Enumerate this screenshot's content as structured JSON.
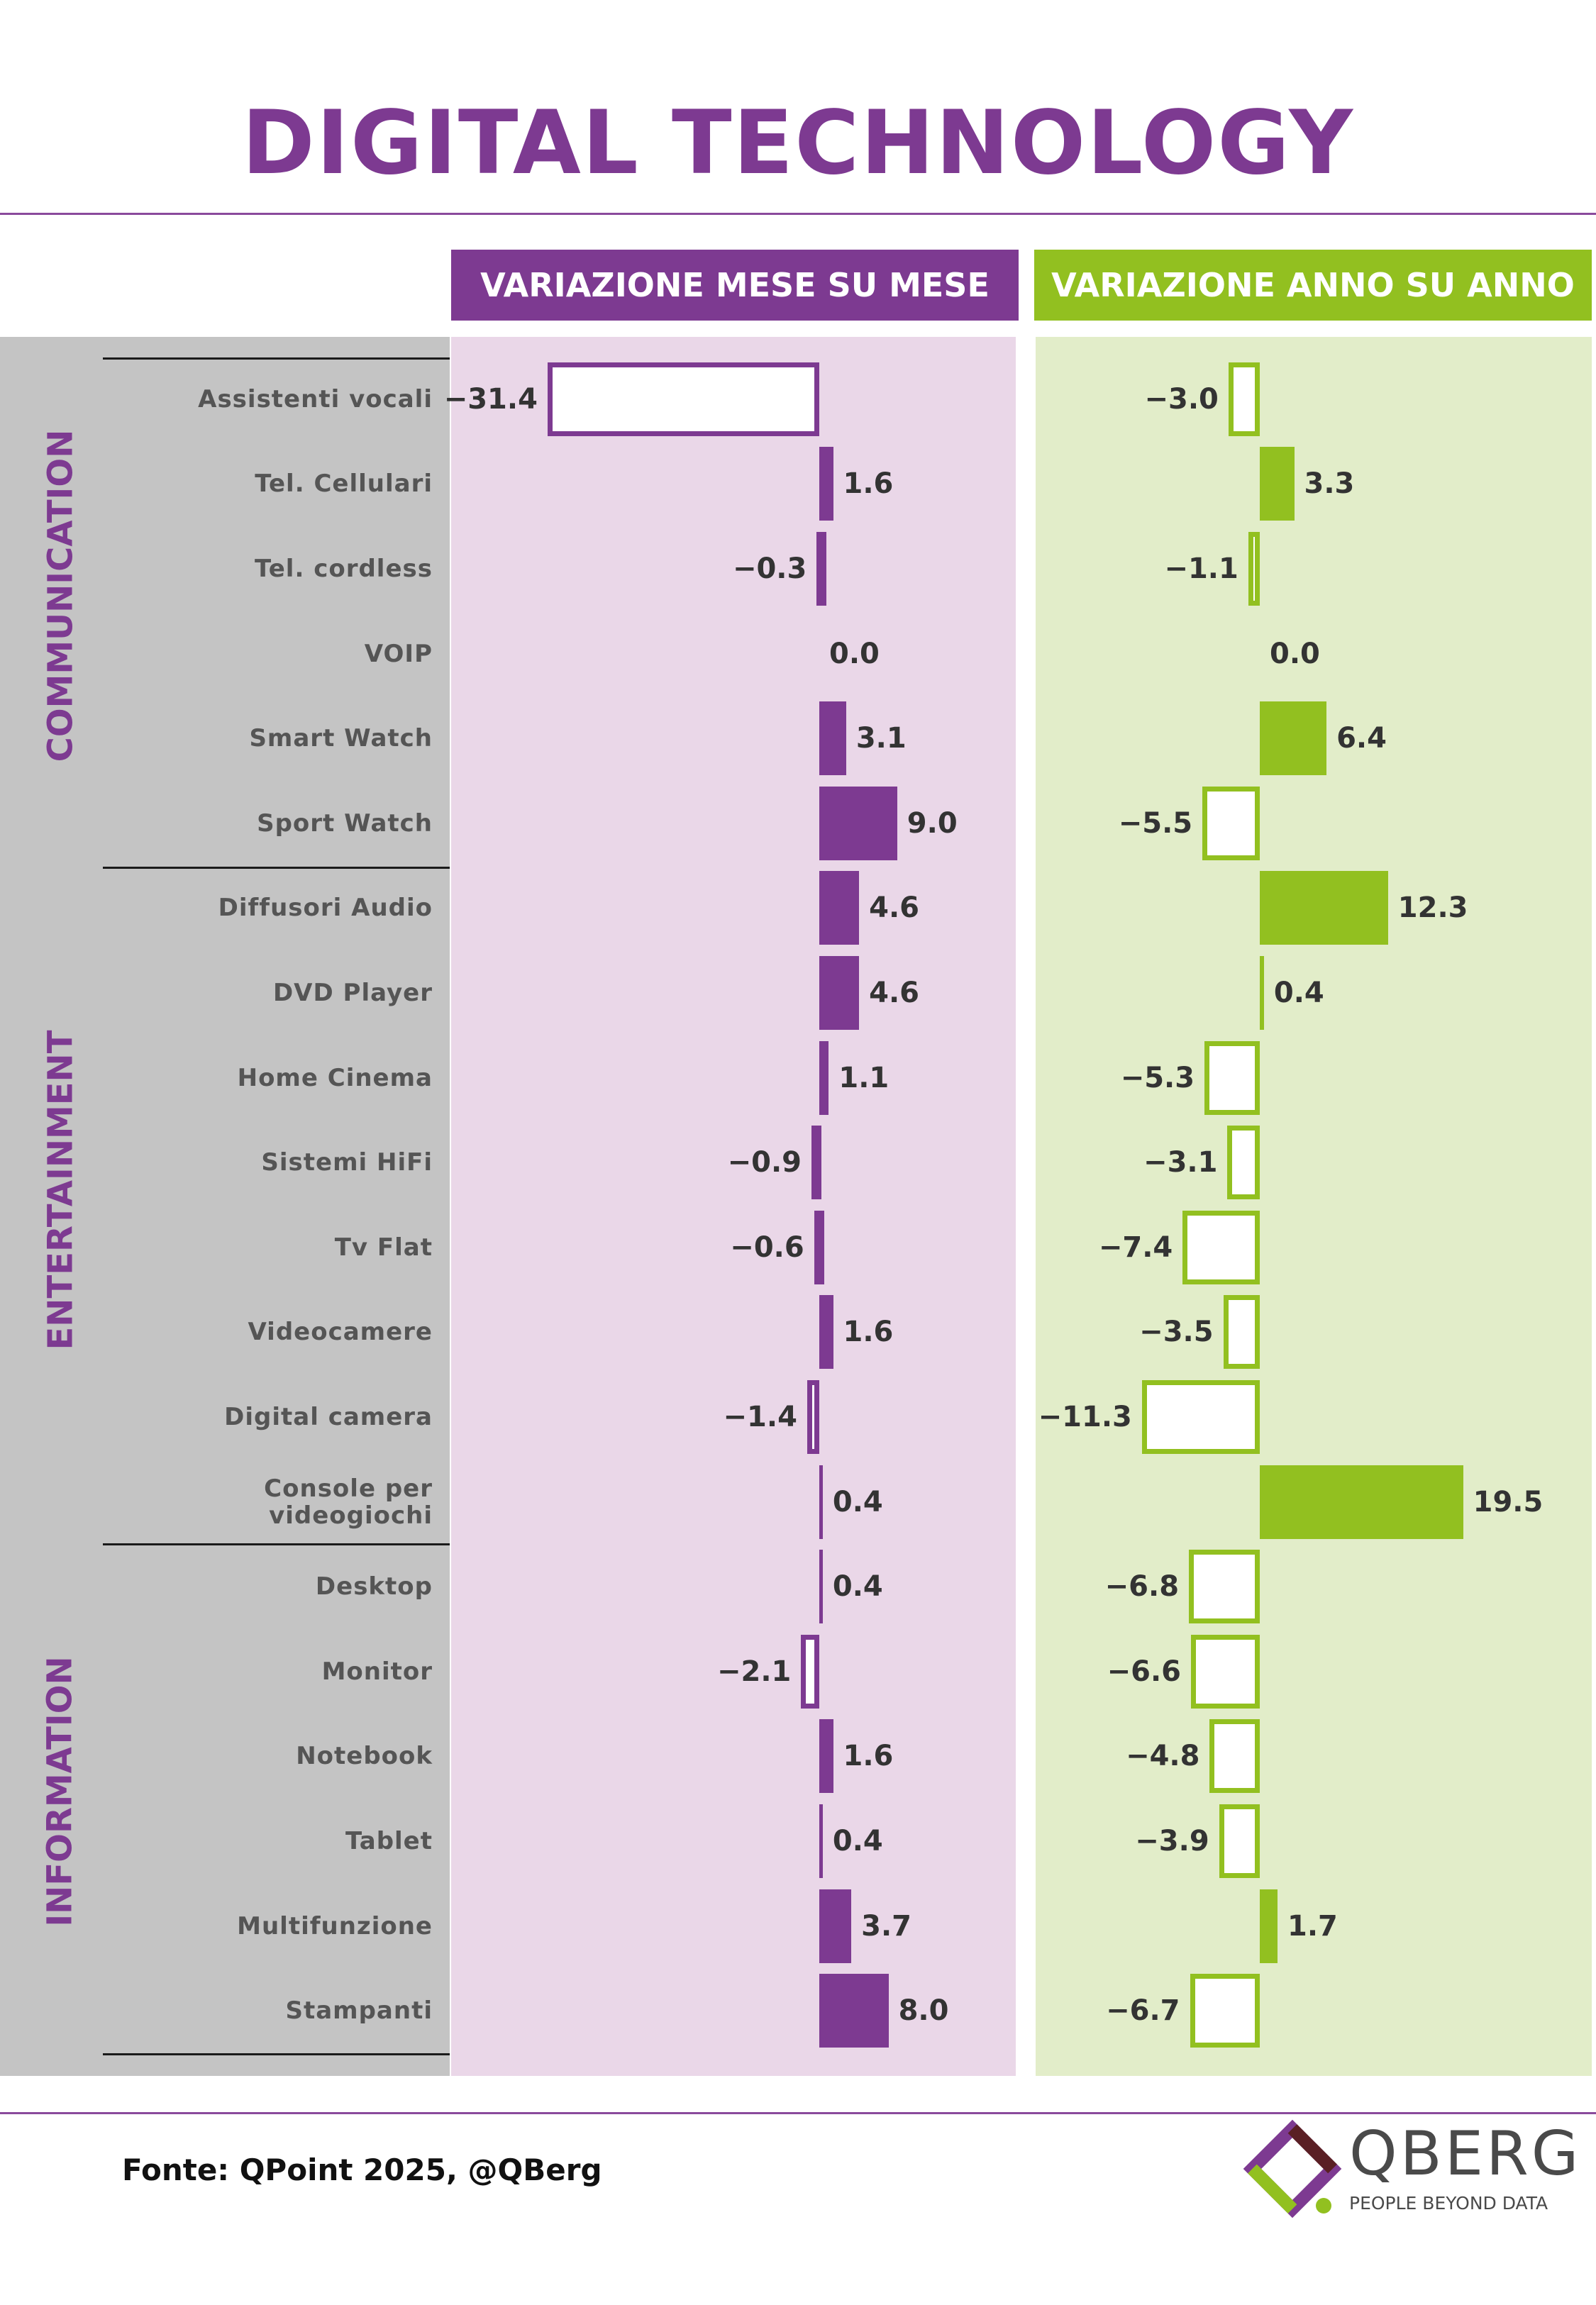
{
  "title": "DIGITAL TECHNOLOGY",
  "columns": {
    "mom": "VARIAZIONE MESE SU MESE",
    "yoy": "VARIAZIONE ANNO SU ANNO"
  },
  "groups": [
    "COMMUNICATION",
    "ENTERTAINMENT",
    "INFORMATION"
  ],
  "footer": {
    "source": "Fonte: QPoint 2025, @QBerg",
    "logo_name": "QBERG",
    "logo_tagline": "PEOPLE BEYOND DATA"
  },
  "colors": {
    "purple": "#7d3a91",
    "green": "#92c020",
    "purple_panel": "#ead7e8",
    "green_panel": "#e2edc9"
  },
  "chart_data": {
    "type": "bar",
    "orientation": "horizontal",
    "categories": [
      "Assistenti vocali",
      "Tel. Cellulari",
      "Tel. cordless",
      "VOIP",
      "Smart Watch",
      "Sport Watch",
      "Diffusori Audio",
      "DVD Player",
      "Home Cinema",
      "Sistemi HiFi",
      "Tv Flat",
      "Videocamere",
      "Digital camera",
      "Console per videogiochi",
      "Desktop",
      "Monitor",
      "Notebook",
      "Tablet",
      "Multifunzione",
      "Stampanti"
    ],
    "category_groups": [
      "COMMUNICATION",
      "COMMUNICATION",
      "COMMUNICATION",
      "COMMUNICATION",
      "COMMUNICATION",
      "COMMUNICATION",
      "ENTERTAINMENT",
      "ENTERTAINMENT",
      "ENTERTAINMENT",
      "ENTERTAINMENT",
      "ENTERTAINMENT",
      "ENTERTAINMENT",
      "ENTERTAINMENT",
      "ENTERTAINMENT",
      "INFORMATION",
      "INFORMATION",
      "INFORMATION",
      "INFORMATION",
      "INFORMATION",
      "INFORMATION"
    ],
    "series": [
      {
        "name": "VARIAZIONE MESE SU MESE",
        "values": [
          -31.4,
          1.6,
          -0.3,
          0.0,
          3.1,
          9.0,
          4.6,
          4.6,
          1.1,
          -0.9,
          -0.6,
          1.6,
          -1.4,
          0.4,
          0.4,
          -2.1,
          1.6,
          0.4,
          3.7,
          8.0
        ]
      },
      {
        "name": "VARIAZIONE ANNO SU ANNO",
        "values": [
          -3.0,
          3.3,
          -1.1,
          0.0,
          6.4,
          -5.5,
          12.3,
          0.4,
          -5.3,
          -3.1,
          -7.4,
          -3.5,
          -11.3,
          19.5,
          -6.8,
          -6.6,
          -4.8,
          -3.9,
          1.7,
          -6.7
        ]
      }
    ],
    "value_labels": {
      "mom": [
        "−31.4",
        "1.6",
        "−0.3",
        "0.0",
        "3.1",
        "9.0",
        "4.6",
        "4.6",
        "1.1",
        "−0.9",
        "−0.6",
        "1.6",
        "−1.4",
        "0.4",
        "0.4",
        "−2.1",
        "1.6",
        "0.4",
        "3.7",
        "8.0"
      ],
      "yoy": [
        "−3.0",
        "3.3",
        "−1.1",
        "0.0",
        "6.4",
        "−5.5",
        "12.3",
        "0.4",
        "−5.3",
        "−3.1",
        "−7.4",
        "−3.5",
        "−11.3",
        "19.5",
        "−6.8",
        "−6.6",
        "−4.8",
        "−3.9",
        "1.7",
        "−6.7"
      ]
    },
    "title": "DIGITAL TECHNOLOGY",
    "xlabel": "",
    "ylabel": "",
    "grid": false,
    "legend": "top"
  }
}
